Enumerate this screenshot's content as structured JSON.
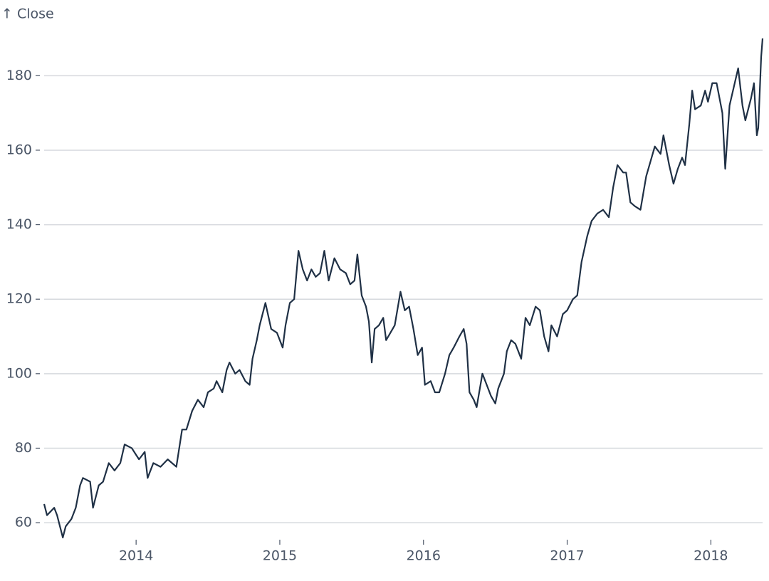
{
  "chart_data": {
    "type": "line",
    "y_label": "↑ Close",
    "x": [
      2013.36,
      2013.38,
      2013.43,
      2013.45,
      2013.49,
      2013.51,
      2013.55,
      2013.58,
      2013.61,
      2013.63,
      2013.68,
      2013.7,
      2013.74,
      2013.77,
      2013.81,
      2013.85,
      2013.89,
      2013.92,
      2013.97,
      2014.02,
      2014.06,
      2014.08,
      2014.12,
      2014.17,
      2014.22,
      2014.28,
      2014.32,
      2014.35,
      2014.39,
      2014.43,
      2014.47,
      2014.5,
      2014.54,
      2014.56,
      2014.6,
      2014.63,
      2014.65,
      2014.69,
      2014.72,
      2014.76,
      2014.79,
      2014.81,
      2014.84,
      2014.86,
      2014.9,
      2014.94,
      2014.98,
      2015.02,
      2015.04,
      2015.07,
      2015.1,
      2015.13,
      2015.16,
      2015.19,
      2015.22,
      2015.25,
      2015.28,
      2015.31,
      2015.34,
      2015.38,
      2015.42,
      2015.46,
      2015.49,
      2015.52,
      2015.54,
      2015.57,
      2015.6,
      2015.62,
      2015.64,
      2015.66,
      2015.69,
      2015.72,
      2015.74,
      2015.77,
      2015.8,
      2015.84,
      2015.87,
      2015.9,
      2015.93,
      2015.96,
      2015.99,
      2016.01,
      2016.05,
      2016.08,
      2016.11,
      2016.15,
      2016.18,
      2016.21,
      2016.25,
      2016.28,
      2016.3,
      2016.32,
      2016.35,
      2016.37,
      2016.41,
      2016.44,
      2016.47,
      2016.5,
      2016.52,
      2016.56,
      2016.58,
      2016.61,
      2016.64,
      2016.68,
      2016.71,
      2016.74,
      2016.78,
      2016.81,
      2016.84,
      2016.87,
      2016.89,
      2016.93,
      2016.97,
      2017.0,
      2017.04,
      2017.07,
      2017.1,
      2017.14,
      2017.17,
      2017.21,
      2017.25,
      2017.29,
      2017.32,
      2017.35,
      2017.39,
      2017.41,
      2017.44,
      2017.47,
      2017.51,
      2017.55,
      2017.58,
      2017.61,
      2017.65,
      2017.67,
      2017.71,
      2017.74,
      2017.77,
      2017.8,
      2017.82,
      2017.85,
      2017.87,
      2017.89,
      2017.93,
      2017.96,
      2017.98,
      2018.01,
      2018.04,
      2018.08,
      2018.1,
      2018.13,
      2018.16,
      2018.19,
      2018.22,
      2018.24,
      2018.28,
      2018.3,
      2018.32,
      2018.33,
      2018.35,
      2018.36
    ],
    "series": [
      {
        "name": "Close",
        "color": "#1f3045",
        "values": [
          65,
          62,
          64,
          62,
          56,
          59,
          61,
          64,
          70,
          72,
          71,
          64,
          70,
          71,
          76,
          74,
          76,
          81,
          80,
          77,
          79,
          72,
          76,
          75,
          77,
          75,
          85,
          85,
          90,
          93,
          91,
          95,
          96,
          98,
          95,
          101,
          103,
          100,
          101,
          98,
          97,
          104,
          109,
          113,
          119,
          112,
          111,
          107,
          113,
          119,
          120,
          133,
          128,
          125,
          128,
          126,
          127,
          133,
          125,
          131,
          128,
          127,
          124,
          125,
          132,
          121,
          118,
          114,
          103,
          112,
          113,
          115,
          109,
          111,
          113,
          122,
          117,
          118,
          112,
          105,
          107,
          97,
          98,
          95,
          95,
          100,
          105,
          107,
          110,
          112,
          108,
          95,
          93,
          91,
          100,
          97,
          94,
          92,
          96,
          100,
          106,
          109,
          108,
          104,
          115,
          113,
          118,
          117,
          110,
          106,
          113,
          110,
          116,
          117,
          120,
          121,
          130,
          137,
          141,
          143,
          144,
          142,
          150,
          156,
          154,
          154,
          146,
          145,
          144,
          153,
          157,
          161,
          159,
          164,
          156,
          151,
          155,
          158,
          156,
          167,
          176,
          171,
          172,
          176,
          173,
          178,
          178,
          170,
          155,
          172,
          177,
          182,
          172,
          168,
          174,
          178,
          164,
          166,
          185,
          190
        ]
      }
    ],
    "xlim": [
      2013.36,
      2018.36
    ],
    "xticks": [
      2014,
      2015,
      2016,
      2017,
      2018
    ],
    "ylim": [
      56,
      190
    ],
    "yticks": [
      60,
      80,
      100,
      120,
      140,
      160,
      180
    ],
    "grid": true
  }
}
